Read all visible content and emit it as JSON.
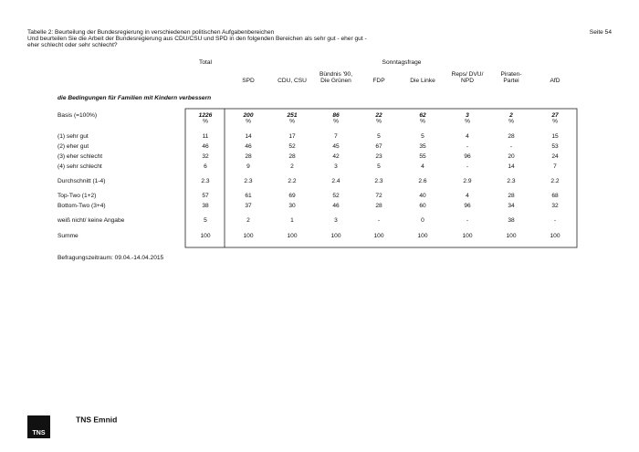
{
  "header": {
    "title": "Tabelle 2: Beurteilung der Bundesregierung in verschiedenen politischen Aufgabenbereichen",
    "question": [
      "Und beurteilen Sie die Arbeit der Bundesregierung aus CDU/CSU und SPD in den folgenden Bereichen als sehr gut - eher gut -",
      "eher schlecht oder sehr schlecht?"
    ],
    "page": "Seite 54"
  },
  "table": {
    "group_headers": [
      "Total",
      "Sonntagsfrage"
    ],
    "columns": [
      [
        "SPD"
      ],
      [
        "CDU, CSU"
      ],
      [
        "Bündnis '90,",
        "Die Grünen"
      ],
      [
        "FDP"
      ],
      [
        "Die Linke"
      ],
      [
        "Reps/ DVU/",
        "NPD"
      ],
      [
        "Piraten-",
        "Partei"
      ],
      [
        "AfD"
      ]
    ],
    "section": "die Bedingungen für Familien mit Kindern verbessern",
    "basis": {
      "label": "Basis (=100%)",
      "values": [
        "1226",
        "200",
        "251",
        "86",
        "22",
        "62",
        "3",
        "2",
        "27"
      ],
      "unit": "%"
    },
    "rows": [
      {
        "label": "(1) sehr gut",
        "values": [
          11,
          14,
          17,
          7,
          5,
          5,
          4,
          28,
          15
        ]
      },
      {
        "label": "(2) eher gut",
        "values": [
          46,
          46,
          52,
          45,
          67,
          35,
          "-",
          "-",
          53
        ]
      },
      {
        "label": "(3) eher schlecht",
        "values": [
          32,
          28,
          28,
          42,
          23,
          55,
          96,
          20,
          24
        ]
      },
      {
        "label": "(4) sehr schlecht",
        "values": [
          6,
          9,
          2,
          3,
          5,
          4,
          "-",
          14,
          7
        ]
      },
      {
        "label": "Durchschnitt (1-4)",
        "values": [
          2.3,
          2.3,
          2.2,
          2.4,
          2.3,
          2.6,
          2.9,
          2.3,
          2.2
        ]
      },
      {
        "label": "Top-Two (1+2)",
        "values": [
          57,
          61,
          69,
          52,
          72,
          40,
          4,
          28,
          68
        ]
      },
      {
        "label": "Bottom-Two (3+4)",
        "values": [
          38,
          37,
          30,
          46,
          28,
          60,
          96,
          34,
          32
        ]
      },
      {
        "label": "weiß nicht/ keine Angabe",
        "values": [
          5,
          2,
          1,
          3,
          "-",
          0,
          "-",
          38,
          "-"
        ]
      },
      {
        "label": "Summe",
        "values": [
          100,
          100,
          100,
          100,
          100,
          100,
          100,
          100,
          100
        ]
      }
    ],
    "footnote": "Befragungszeitraum: 09.04.-14.04.2015"
  },
  "footer": {
    "logo": "TNS",
    "brand": "TNS Emnid"
  }
}
